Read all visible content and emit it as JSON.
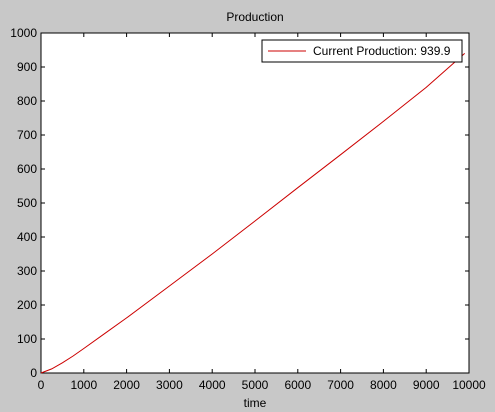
{
  "chart_data": {
    "type": "line",
    "title": "Production",
    "xlabel": "time",
    "ylabel": "",
    "xlim": [
      0,
      10000
    ],
    "ylim": [
      0,
      1000
    ],
    "xticks": [
      0,
      1000,
      2000,
      3000,
      4000,
      5000,
      6000,
      7000,
      8000,
      9000,
      10000
    ],
    "yticks": [
      0,
      100,
      200,
      300,
      400,
      500,
      600,
      700,
      800,
      900,
      1000
    ],
    "grid": false,
    "legend_position": "top-right",
    "series": [
      {
        "name": "Current Production: 939.9",
        "color": "#cc0000",
        "x": [
          0,
          250,
          500,
          750,
          1000,
          1500,
          2000,
          3000,
          4000,
          5000,
          6000,
          7000,
          8000,
          9000,
          9900
        ],
        "y": [
          0,
          12,
          30,
          50,
          72,
          117,
          162,
          256,
          350,
          447,
          545,
          642,
          740,
          840,
          939.9
        ]
      }
    ]
  }
}
